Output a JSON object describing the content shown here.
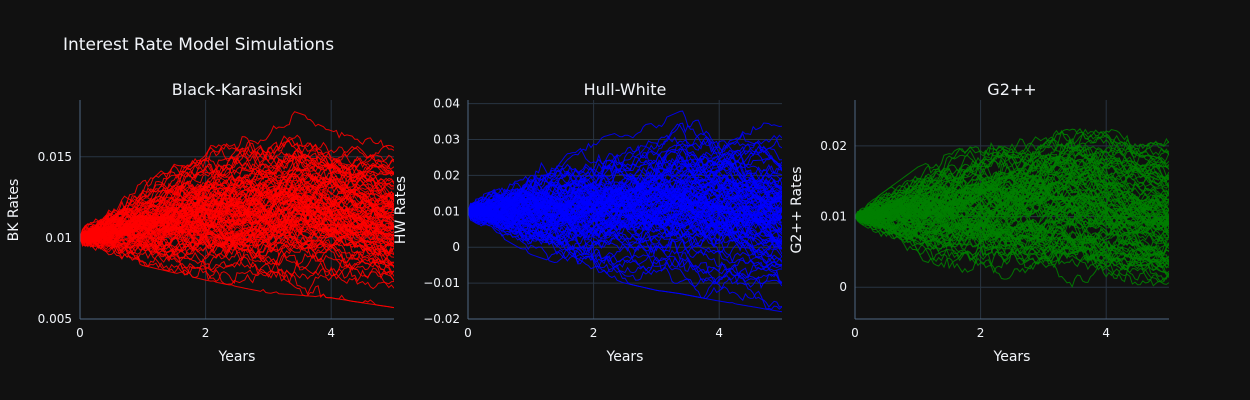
{
  "title": "Interest Rate Model Simulations",
  "colors": {
    "background": "#111111",
    "grid": "#283442",
    "text": "#f2f5fa"
  },
  "chart_data": [
    {
      "type": "line",
      "title": "Black-Karasinski",
      "xlabel": "Years",
      "ylabel": "BK Rates",
      "color": "#ff0000",
      "xlim": [
        0,
        5
      ],
      "ylim": [
        0.005,
        0.0185
      ],
      "xticks": [
        0,
        2,
        4
      ],
      "yticks": [
        0.005,
        0.01,
        0.015
      ],
      "ytick_labels": [
        "0.005",
        "0.01",
        "0.015"
      ],
      "series_count": 100,
      "steps": 120,
      "start": 0.01,
      "envelope": {
        "x": [
          0,
          1,
          2,
          3,
          3.4,
          4,
          5
        ],
        "max": [
          0.0105,
          0.0135,
          0.016,
          0.0168,
          0.0178,
          0.017,
          0.0163
        ],
        "min": [
          0.0095,
          0.0083,
          0.0074,
          0.0066,
          0.0065,
          0.0063,
          0.0057
        ]
      }
    },
    {
      "type": "line",
      "title": "Hull-White",
      "xlabel": "Years",
      "ylabel": "HW Rates",
      "color": "#0000ff",
      "xlim": [
        0,
        5
      ],
      "ylim": [
        -0.02,
        0.041
      ],
      "xticks": [
        0,
        2,
        4
      ],
      "yticks": [
        -0.02,
        -0.01,
        0,
        0.01,
        0.02,
        0.03,
        0.04
      ],
      "ytick_labels": [
        "−0.02",
        "−0.01",
        "0",
        "0.01",
        "0.02",
        "0.03",
        "0.04"
      ],
      "series_count": 100,
      "steps": 120,
      "start": 0.01,
      "envelope": {
        "x": [
          0,
          1,
          2,
          3,
          3.4,
          4,
          5
        ],
        "max": [
          0.012,
          0.024,
          0.03,
          0.035,
          0.038,
          0.036,
          0.034
        ],
        "min": [
          0.008,
          -0.002,
          -0.008,
          -0.012,
          -0.013,
          -0.015,
          -0.018
        ]
      }
    },
    {
      "type": "line",
      "title": "G2++",
      "xlabel": "Years",
      "ylabel": "G2++ Rates",
      "color": "#008000",
      "xlim": [
        0,
        5
      ],
      "ylim": [
        -0.0045,
        0.0265
      ],
      "xticks": [
        0,
        2,
        4
      ],
      "yticks": [
        0,
        0.01,
        0.02
      ],
      "ytick_labels": [
        "0",
        "0.01",
        "0.02"
      ],
      "series_count": 100,
      "steps": 120,
      "start": 0.01,
      "envelope": {
        "x": [
          0,
          1,
          2,
          3,
          3.4,
          4,
          5
        ],
        "max": [
          0.0105,
          0.017,
          0.021,
          0.023,
          0.0245,
          0.0235,
          0.0225
        ],
        "min": [
          0.0095,
          0.004,
          0.001,
          -0.001,
          -0.001,
          -0.002,
          -0.004
        ]
      }
    }
  ]
}
